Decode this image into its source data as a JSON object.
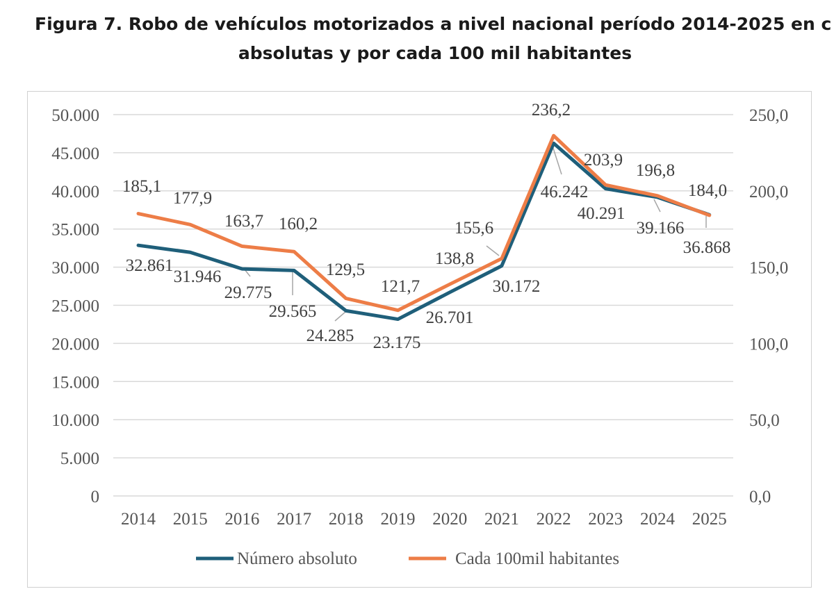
{
  "title": {
    "line1": "Figura 7. Robo de vehículos motorizados a nivel nacional período 2014-2025 en c",
    "line2": "absolutas y por cada 100 mil habitantes"
  },
  "chart_data": {
    "type": "line",
    "categories": [
      "2014",
      "2015",
      "2016",
      "2017",
      "2018",
      "2019",
      "2020",
      "2021",
      "2022",
      "2023",
      "2024",
      "2025"
    ],
    "y_left": {
      "ylim": [
        0,
        50000
      ],
      "ticks": [
        "0",
        "5.000",
        "10.000",
        "15.000",
        "20.000",
        "25.000",
        "30.000",
        "35.000",
        "40.000",
        "45.000",
        "50.000"
      ]
    },
    "y_right": {
      "ylim": [
        0,
        250
      ],
      "ticks": [
        "0,0",
        "50,0",
        "100,0",
        "150,0",
        "200,0",
        "250,0"
      ]
    },
    "grid": true,
    "legend": "bottom",
    "series": [
      {
        "name": "Número absoluto",
        "axis": "left",
        "color": "#1f5f7a",
        "values": [
          32861,
          31946,
          29775,
          29565,
          24285,
          23175,
          null,
          30172,
          46242,
          40291,
          39166,
          36868
        ],
        "labels": [
          "32.861",
          "31.946",
          "29.775",
          "29.565",
          "24.285",
          "23.175",
          "26.701",
          "30.172",
          "46.242",
          "40.291",
          "39.166",
          "36.868"
        ]
      },
      {
        "name": "Cada 100mil habitantes",
        "axis": "right",
        "color": "#ed7d47",
        "values": [
          185.1,
          177.9,
          163.7,
          160.2,
          129.5,
          121.7,
          138.8,
          155.6,
          236.2,
          203.9,
          196.8,
          184.0
        ],
        "labels": [
          "185,1",
          "177,9",
          "163,7",
          "160,2",
          "129,5",
          "121,7",
          "138,8",
          "155,6",
          "236,2",
          "203,9",
          "196,8",
          "184,0"
        ]
      }
    ]
  }
}
